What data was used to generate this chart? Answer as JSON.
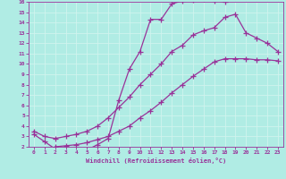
{
  "xlabel": "Windchill (Refroidissement éolien,°C)",
  "xlim": [
    -0.5,
    23.5
  ],
  "ylim": [
    2,
    16
  ],
  "xticks": [
    0,
    1,
    2,
    3,
    4,
    5,
    6,
    7,
    8,
    9,
    10,
    11,
    12,
    13,
    14,
    15,
    16,
    17,
    18,
    19,
    20,
    21,
    22,
    23
  ],
  "yticks": [
    2,
    3,
    4,
    5,
    6,
    7,
    8,
    9,
    10,
    11,
    12,
    13,
    14,
    15,
    16
  ],
  "background_color": "#b0ece4",
  "grid_color": "#d0f4ee",
  "line_color": "#993399",
  "line_width": 0.9,
  "marker": "+",
  "marker_size": 4,
  "line1_x": [
    0,
    1,
    2,
    3,
    4,
    5,
    6,
    7,
    8,
    9,
    10,
    11,
    12,
    13,
    14,
    15,
    16,
    17,
    18
  ],
  "line1_y": [
    3.2,
    2.5,
    1.8,
    1.65,
    1.7,
    1.7,
    2.2,
    2.8,
    6.5,
    9.5,
    11.2,
    14.3,
    14.3,
    15.8,
    16.1,
    16.2,
    16.3,
    16.1,
    16.0
  ],
  "line2_x": [
    0,
    1,
    2,
    3,
    4,
    5,
    6,
    7,
    8,
    9,
    10,
    11,
    12,
    13,
    14,
    15,
    16,
    17,
    18,
    19,
    20,
    21,
    22,
    23
  ],
  "line2_y": [
    3.5,
    3.0,
    2.8,
    3.0,
    3.2,
    3.5,
    4.0,
    4.8,
    5.8,
    6.8,
    8.0,
    9.0,
    10.0,
    11.2,
    11.8,
    12.8,
    13.2,
    13.5,
    14.5,
    14.8,
    13.0,
    12.5,
    12.0,
    11.2
  ],
  "line3_x": [
    2,
    3,
    4,
    5,
    6,
    7,
    8,
    9,
    10,
    11,
    12,
    13,
    14,
    15,
    16,
    17,
    18,
    19,
    20,
    21,
    22,
    23
  ],
  "line3_y": [
    2.0,
    2.1,
    2.2,
    2.4,
    2.7,
    3.0,
    3.5,
    4.0,
    4.8,
    5.5,
    6.3,
    7.2,
    8.0,
    8.8,
    9.5,
    10.2,
    10.5,
    10.5,
    10.5,
    10.4,
    10.4,
    10.3
  ]
}
